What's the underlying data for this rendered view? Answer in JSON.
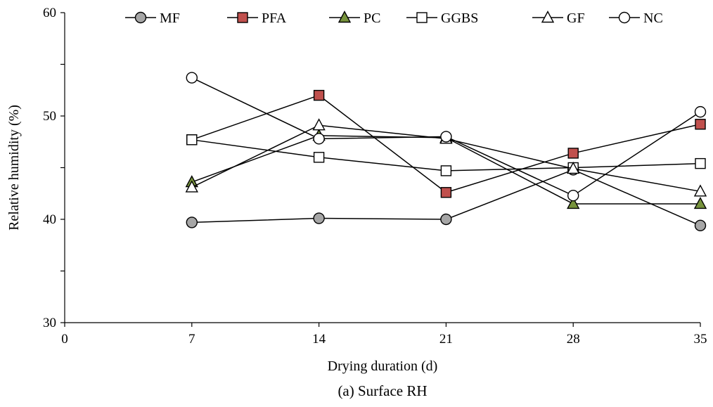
{
  "chart_data": {
    "type": "line",
    "caption": "(a) Surface RH",
    "xlabel": "Drying duration (d)",
    "ylabel": "Relative humidity (%)",
    "xlim": [
      0,
      35
    ],
    "ylim": [
      30,
      60
    ],
    "xticks": [
      0,
      7,
      14,
      21,
      28,
      35
    ],
    "yticks": [
      30,
      40,
      50,
      60
    ],
    "x": [
      7,
      14,
      21,
      28,
      35
    ],
    "legend_position": "top",
    "grid": false,
    "series": [
      {
        "name": "MF",
        "values": [
          39.7,
          40.1,
          40.0,
          44.8,
          39.4
        ],
        "marker": "circle",
        "fill": "#a6a6a6"
      },
      {
        "name": "PFA",
        "values": [
          47.7,
          52.0,
          42.6,
          46.4,
          49.2
        ],
        "marker": "square",
        "fill": "#c0504d"
      },
      {
        "name": "PC",
        "values": [
          43.6,
          48.1,
          47.9,
          41.5,
          41.5
        ],
        "marker": "triangle",
        "fill": "#77933c"
      },
      {
        "name": "GGBS",
        "values": [
          47.7,
          46.0,
          44.7,
          45.0,
          45.4
        ],
        "marker": "square",
        "fill": "#ffffff"
      },
      {
        "name": "GF",
        "values": [
          43.1,
          49.1,
          47.8,
          44.9,
          42.7
        ],
        "marker": "triangle",
        "fill": "#ffffff"
      },
      {
        "name": "NC",
        "values": [
          53.7,
          47.8,
          48.0,
          42.3,
          50.4
        ],
        "marker": "circle",
        "fill": "#ffffff"
      }
    ]
  }
}
